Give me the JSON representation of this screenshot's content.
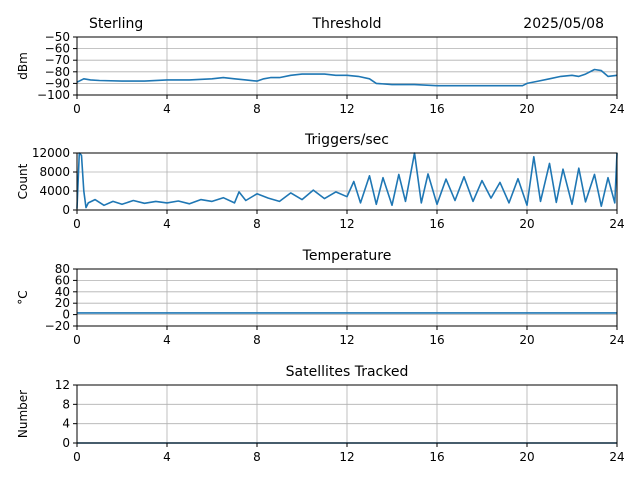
{
  "header": {
    "left": "Sterling",
    "right": "2025/05/08"
  },
  "chart_data": [
    {
      "type": "line",
      "title": "Threshold",
      "ylabel": "dBm",
      "xlim": [
        0,
        24
      ],
      "ylim": [
        -100,
        -50
      ],
      "xticks": [
        0,
        4,
        8,
        12,
        16,
        20,
        24
      ],
      "yticks": [
        -100,
        -90,
        -80,
        -70,
        -60,
        -50
      ],
      "ytick_labels": [
        "−100",
        "−90",
        "−80",
        "−70",
        "−60",
        "−50"
      ],
      "grid": true,
      "series": [
        {
          "color": "#1f77b4",
          "x": [
            0,
            0.3,
            0.6,
            1,
            2,
            3,
            4,
            5,
            6,
            6.5,
            7,
            7.5,
            8,
            8.3,
            8.6,
            9,
            9.5,
            10,
            10.5,
            11,
            11.5,
            12,
            12.5,
            13,
            13.3,
            14,
            15,
            16,
            17,
            18,
            19,
            19.8,
            20,
            20.5,
            21,
            21.5,
            22,
            22.3,
            22.6,
            23,
            23.3,
            23.6,
            24
          ],
          "y": [
            -89,
            -86,
            -87,
            -87.5,
            -88,
            -88,
            -87,
            -87,
            -86,
            -85,
            -86,
            -87,
            -88,
            -86,
            -85,
            -85,
            -83,
            -82,
            -82,
            -82,
            -83,
            -83,
            -84,
            -86,
            -90,
            -91,
            -91,
            -92,
            -92,
            -92,
            -92,
            -92,
            -90,
            -88,
            -86,
            -84,
            -83,
            -84,
            -82,
            -78,
            -79,
            -84,
            -83
          ]
        }
      ]
    },
    {
      "type": "line",
      "title": "Triggers/sec",
      "ylabel": "Count",
      "xlim": [
        0,
        24
      ],
      "ylim": [
        0,
        12000
      ],
      "xticks": [
        0,
        4,
        8,
        12,
        16,
        20,
        24
      ],
      "yticks": [
        0,
        4000,
        8000,
        12000
      ],
      "ytick_labels": [
        "0",
        "4000",
        "8000",
        "12000"
      ],
      "grid": true,
      "series": [
        {
          "color": "#1f77b4",
          "x": [
            0,
            0.1,
            0.2,
            0.3,
            0.4,
            0.5,
            0.8,
            1.2,
            1.6,
            2,
            2.5,
            3,
            3.5,
            4,
            4.5,
            5,
            5.5,
            6,
            6.5,
            7,
            7.2,
            7.5,
            8,
            8.5,
            9,
            9.5,
            10,
            10.5,
            11,
            11.5,
            12,
            12.3,
            12.6,
            13,
            13.3,
            13.6,
            14,
            14.3,
            14.6,
            15,
            15.3,
            15.6,
            16,
            16.4,
            16.8,
            17.2,
            17.6,
            18,
            18.4,
            18.8,
            19.2,
            19.6,
            20,
            20.3,
            20.6,
            21,
            21.3,
            21.6,
            22,
            22.3,
            22.6,
            23,
            23.3,
            23.6,
            23.9,
            24
          ],
          "y": [
            300,
            12000,
            11500,
            4000,
            500,
            1500,
            2200,
            1000,
            1800,
            1200,
            2000,
            1400,
            1800,
            1500,
            1900,
            1300,
            2200,
            1800,
            2600,
            1500,
            3800,
            2000,
            3400,
            2500,
            1800,
            3600,
            2200,
            4200,
            2400,
            3800,
            2800,
            6000,
            1500,
            7200,
            1200,
            6800,
            1000,
            7500,
            1800,
            12000,
            1500,
            7600,
            1200,
            6500,
            2000,
            7000,
            1800,
            6200,
            2500,
            5800,
            1500,
            6600,
            1000,
            11200,
            1800,
            9800,
            1600,
            8600,
            1200,
            8800,
            1700,
            7500,
            800,
            6800,
            1500,
            12000
          ]
        }
      ]
    },
    {
      "type": "line",
      "title": "Temperature",
      "ylabel": "°C",
      "xlim": [
        0,
        24
      ],
      "ylim": [
        -20,
        80
      ],
      "xticks": [
        0,
        4,
        8,
        12,
        16,
        20,
        24
      ],
      "yticks": [
        -20,
        0,
        20,
        40,
        60,
        80
      ],
      "ytick_labels": [
        "−20",
        "0",
        "20",
        "40",
        "60",
        "80"
      ],
      "grid": true,
      "series": [
        {
          "color": "#1f77b4",
          "x": [
            0,
            24
          ],
          "y": [
            3,
            3
          ]
        }
      ]
    },
    {
      "type": "line",
      "title": "Satellites Tracked",
      "ylabel": "Number",
      "xlim": [
        0,
        24
      ],
      "ylim": [
        0,
        12
      ],
      "xticks": [
        0,
        4,
        8,
        12,
        16,
        20,
        24
      ],
      "yticks": [
        0,
        4,
        8,
        12
      ],
      "ytick_labels": [
        "0",
        "4",
        "8",
        "12"
      ],
      "grid": true,
      "series": [
        {
          "color": "#1f77b4",
          "x": [
            0,
            24
          ],
          "y": [
            0,
            0
          ]
        }
      ]
    }
  ]
}
